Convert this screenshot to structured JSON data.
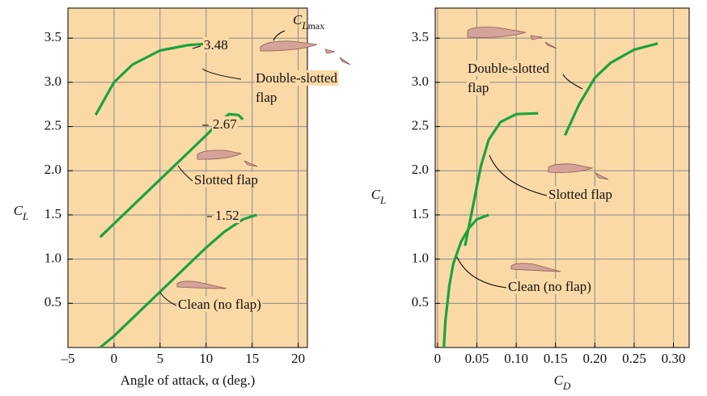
{
  "chart_data": [
    {
      "type": "line",
      "xlabel": "Angle of attack, α (deg.)",
      "ylabel": [
        "C",
        "L"
      ],
      "xlim": [
        -5,
        21
      ],
      "ylim": [
        0,
        3.84
      ],
      "xticks": [
        {
          "value": -5,
          "label": "–5"
        },
        0,
        5,
        10,
        15,
        20
      ],
      "yticks": [
        0.5,
        {
          "value": 1,
          "label": "1.0"
        },
        1.5,
        {
          "value": 2,
          "label": "2.0"
        },
        2.5,
        {
          "value": 3,
          "label": "3.0"
        },
        3.5
      ],
      "grid": true,
      "background": "#fbd9a6",
      "series": [
        {
          "color": "#1aa33e",
          "x": [
            -1.5,
            0,
            5,
            10,
            12,
            14,
            15.5
          ],
          "values": [
            0.0,
            0.13,
            0.63,
            1.13,
            1.31,
            1.45,
            1.5
          ]
        },
        {
          "color": "#1aa33e",
          "x": [
            -1.5,
            0,
            5,
            10,
            11.5,
            12.5,
            13.5,
            14
          ],
          "values": [
            1.25,
            1.4,
            1.9,
            2.4,
            2.56,
            2.64,
            2.63,
            2.58
          ]
        },
        {
          "color": "#1aa33e",
          "x": [
            -2,
            0,
            2,
            5,
            8,
            10.5
          ],
          "values": [
            2.63,
            3.0,
            3.2,
            3.36,
            3.42,
            3.44
          ]
        }
      ],
      "annotations": [
        "3.48",
        "2.67",
        "1.52",
        "Double-slotted",
        "flap",
        "Slotted flap",
        "Clean (no flap)"
      ],
      "clmax_label": [
        "C",
        "L",
        "max"
      ]
    },
    {
      "type": "line",
      "xlabel": [
        "C",
        "D"
      ],
      "ylabel": [
        "C",
        "L"
      ],
      "xlim": [
        -0.003,
        0.32
      ],
      "ylim": [
        0,
        3.84
      ],
      "xticks": [
        0,
        0.05,
        {
          "value": 0.1,
          "label": "0.10"
        },
        0.15,
        {
          "value": 0.2,
          "label": "0.20"
        },
        0.25,
        {
          "value": 0.3,
          "label": "0.30"
        }
      ],
      "yticks": [
        0.5,
        {
          "value": 1,
          "label": "1.0"
        },
        1.5,
        {
          "value": 2,
          "label": "2.0"
        },
        2.5,
        {
          "value": 3,
          "label": "3.0"
        },
        3.5
      ],
      "grid": true,
      "background": "#fbd9a6",
      "series": [
        {
          "color": "#1aa33e",
          "x": [
            0.008,
            0.01,
            0.015,
            0.02,
            0.03,
            0.04,
            0.05,
            0.065
          ],
          "values": [
            0,
            0.3,
            0.7,
            0.95,
            1.2,
            1.35,
            1.45,
            1.5
          ]
        },
        {
          "color": "#1aa33e",
          "x": [
            0.035,
            0.045,
            0.055,
            0.065,
            0.08,
            0.1,
            0.128
          ],
          "values": [
            1.15,
            1.6,
            2.05,
            2.35,
            2.55,
            2.64,
            2.65
          ]
        },
        {
          "color": "#1aa33e",
          "x": [
            0.162,
            0.18,
            0.2,
            0.22,
            0.25,
            0.28
          ],
          "values": [
            2.4,
            2.75,
            3.05,
            3.22,
            3.37,
            3.44
          ]
        }
      ],
      "annotations": [
        "Double-slotted",
        "flap",
        "Slotted flap",
        "Clean (no flap)"
      ]
    }
  ]
}
